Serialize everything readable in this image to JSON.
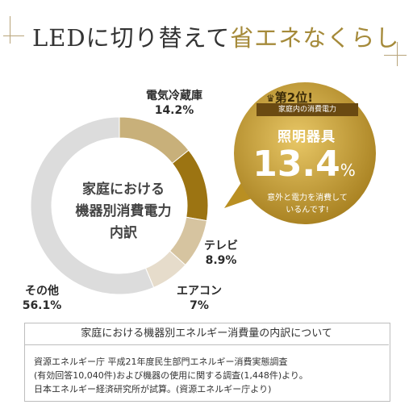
{
  "title": {
    "prefix": "LEDに切り替えて",
    "highlight": "省エネなくらし"
  },
  "chart_data": {
    "type": "pie",
    "title": "家庭における機器別消費電力内訳",
    "center_lines": [
      "家庭における",
      "機器別消費電力",
      "内訳"
    ],
    "slices": [
      {
        "label": "電気冷蔵庫",
        "value": 14.2,
        "value_label": "14.2%",
        "color": "#c8b07a"
      },
      {
        "label": "照明器具",
        "value": 13.4,
        "value_label": "13.4%",
        "color": "#9c7412"
      },
      {
        "label": "テレビ",
        "value": 8.9,
        "value_label": "8.9%",
        "color": "#d6c4a0"
      },
      {
        "label": "エアコン",
        "value": 7,
        "value_label": "7%",
        "color": "#e6dccb"
      },
      {
        "label": "その他",
        "value": 56.1,
        "value_label": "56.1%",
        "color": "#dcdcdc"
      }
    ]
  },
  "badge": {
    "rank": "第2位!",
    "subtitle": "家庭内の消費電力",
    "name": "照明器具",
    "percent": "13.4",
    "percent_sign": "%",
    "note_line1": "意外と電力を消費して",
    "note_line2": "いるんです!",
    "colors": {
      "gold_light": "#e8c766",
      "gold_dark": "#a07818"
    }
  },
  "source": {
    "heading": "家庭における機器別エネルギー消費量の内訳について",
    "lines": [
      "資源エネルギー庁 平成21年度民生部門エネルギー消費実態調査",
      "(有効回答10,040件)および機器の使用に関する調査(1,448件)より。",
      "日本エネルギー経済研究所が試算。(資源エネルギー庁より)"
    ]
  }
}
